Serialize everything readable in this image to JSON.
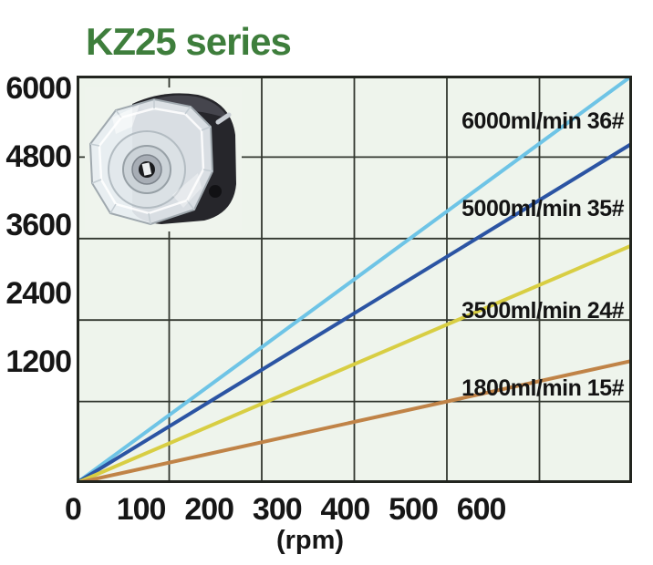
{
  "title": {
    "text": "KZ25 series",
    "color": "#3e7e3c"
  },
  "pump_image": {
    "alt": "transparent peristaltic pump head"
  },
  "chart_data": {
    "type": "line",
    "title": "KZ25 series",
    "xlabel": "(rpm)",
    "ylabel": "",
    "xlim": [
      0,
      600
    ],
    "ylim": [
      0,
      6000
    ],
    "x_ticks": [
      "0",
      "100",
      "200",
      "300",
      "400",
      "500",
      "600"
    ],
    "x_tick_values": [
      0,
      100,
      200,
      300,
      400,
      500,
      600
    ],
    "y_ticks": [
      "6000",
      "4800",
      "3600",
      "2400",
      "1200"
    ],
    "y_tick_values": [
      6000,
      4800,
      3600,
      2400,
      1200
    ],
    "grid": true,
    "legend_position": "labels-inside-right",
    "plot_bg": "#eef4ec",
    "grid_color": "#32372f",
    "border_color": "#22251f",
    "series": [
      {
        "name": "6000ml/min 36#",
        "color": "#6ec4e6",
        "x": [
          0,
          600
        ],
        "values": [
          0,
          6000
        ]
      },
      {
        "name": "5000ml/min 35#",
        "color": "#2b54a3",
        "x": [
          0,
          600
        ],
        "values": [
          0,
          5000
        ]
      },
      {
        "name": "3500ml/min 24#",
        "color": "#d8ce43",
        "x": [
          0,
          600
        ],
        "values": [
          0,
          3500
        ]
      },
      {
        "name": "1800ml/min 15#",
        "color": "#c08347",
        "x": [
          0,
          600
        ],
        "values": [
          0,
          1800
        ]
      }
    ]
  }
}
